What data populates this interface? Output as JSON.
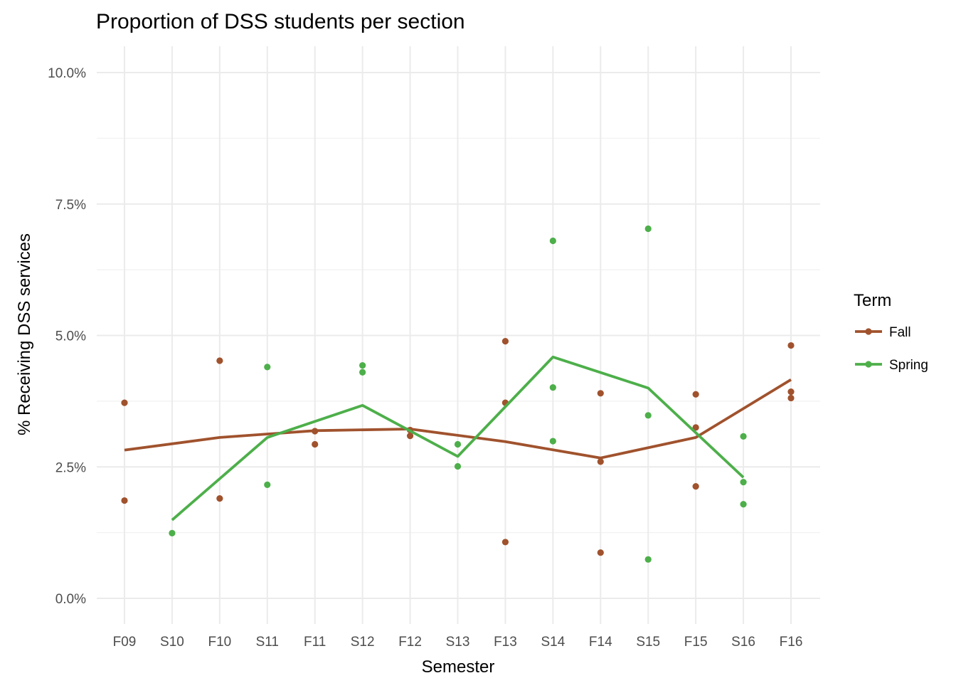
{
  "chart_data": {
    "type": "line",
    "title": "Proportion of DSS students per section",
    "xlabel": "Semester",
    "ylabel": "% Receiving DSS services",
    "categories": [
      "F09",
      "S10",
      "F10",
      "S11",
      "F11",
      "S12",
      "F12",
      "S13",
      "F13",
      "S14",
      "F14",
      "S15",
      "F15",
      "S16",
      "F16"
    ],
    "ylim": [
      -0.005,
      0.105
    ],
    "yticks": [
      0,
      0.025,
      0.05,
      0.075,
      0.1
    ],
    "ytick_labels": [
      "0.0%",
      "2.5%",
      "5.0%",
      "7.5%",
      "10.0%"
    ],
    "grid": true,
    "legend": {
      "title": "Term",
      "position": "right",
      "entries": [
        {
          "label": "Fall",
          "color": "#a0522d"
        },
        {
          "label": "Spring",
          "color": "#4daf4a"
        }
      ]
    },
    "series": [
      {
        "name": "Fall",
        "color": "#a0522d",
        "line": [
          {
            "x": "F09",
            "y": 0.0282
          },
          {
            "x": "F10",
            "y": 0.0306
          },
          {
            "x": "F11",
            "y": 0.0319
          },
          {
            "x": "F12",
            "y": 0.0322
          },
          {
            "x": "F13",
            "y": 0.0298
          },
          {
            "x": "F14",
            "y": 0.0267
          },
          {
            "x": "F15",
            "y": 0.0306
          },
          {
            "x": "F16",
            "y": 0.0416
          }
        ],
        "points": [
          {
            "x": "F09",
            "y": 0.0372
          },
          {
            "x": "F09",
            "y": 0.0186
          },
          {
            "x": "F10",
            "y": 0.0452
          },
          {
            "x": "F10",
            "y": 0.019
          },
          {
            "x": "F11",
            "y": 0.0318
          },
          {
            "x": "F11",
            "y": 0.0293
          },
          {
            "x": "F12",
            "y": 0.032
          },
          {
            "x": "F12",
            "y": 0.0309
          },
          {
            "x": "F13",
            "y": 0.0489
          },
          {
            "x": "F13",
            "y": 0.0372
          },
          {
            "x": "F13",
            "y": 0.0107
          },
          {
            "x": "F14",
            "y": 0.039
          },
          {
            "x": "F14",
            "y": 0.026
          },
          {
            "x": "F14",
            "y": 0.0087
          },
          {
            "x": "F15",
            "y": 0.0388
          },
          {
            "x": "F15",
            "y": 0.0325
          },
          {
            "x": "F15",
            "y": 0.0213
          },
          {
            "x": "F16",
            "y": 0.0481
          },
          {
            "x": "F16",
            "y": 0.0393
          },
          {
            "x": "F16",
            "y": 0.0381
          }
        ]
      },
      {
        "name": "Spring",
        "color": "#4daf4a",
        "line": [
          {
            "x": "S10",
            "y": 0.0149
          },
          {
            "x": "S11",
            "y": 0.0306
          },
          {
            "x": "S12",
            "y": 0.0367
          },
          {
            "x": "S13",
            "y": 0.027
          },
          {
            "x": "S14",
            "y": 0.0459
          },
          {
            "x": "S15",
            "y": 0.04
          },
          {
            "x": "S16",
            "y": 0.023
          }
        ],
        "points": [
          {
            "x": "S10",
            "y": 0.0124
          },
          {
            "x": "S11",
            "y": 0.044
          },
          {
            "x": "S11",
            "y": 0.0216
          },
          {
            "x": "S12",
            "y": 0.0443
          },
          {
            "x": "S12",
            "y": 0.043
          },
          {
            "x": "S13",
            "y": 0.0293
          },
          {
            "x": "S13",
            "y": 0.0251
          },
          {
            "x": "S14",
            "y": 0.068
          },
          {
            "x": "S14",
            "y": 0.0401
          },
          {
            "x": "S14",
            "y": 0.0299
          },
          {
            "x": "S15",
            "y": 0.0703
          },
          {
            "x": "S15",
            "y": 0.0348
          },
          {
            "x": "S15",
            "y": 0.0074
          },
          {
            "x": "S16",
            "y": 0.0308
          },
          {
            "x": "S16",
            "y": 0.0221
          },
          {
            "x": "S16",
            "y": 0.0179
          }
        ]
      }
    ]
  }
}
